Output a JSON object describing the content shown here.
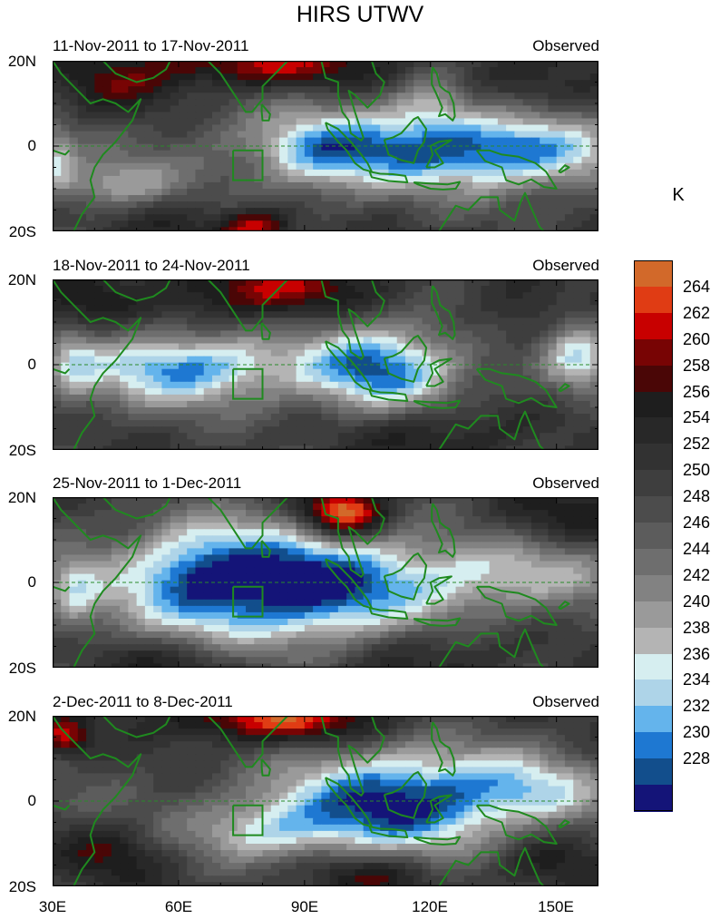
{
  "chart_data": {
    "type": "heatmap",
    "title": "HIRS UTWV",
    "unit": "K",
    "x_tick_labels": [
      "30E",
      "60E",
      "90E",
      "120E",
      "150E"
    ],
    "x_ticks_lon": [
      30,
      60,
      90,
      120,
      150
    ],
    "xlim": [
      30,
      160
    ],
    "y_tick_labels": [
      "20N",
      "0",
      "20S"
    ],
    "y_ticks_lat": [
      20,
      0,
      -20
    ],
    "ylim": [
      -20,
      20
    ],
    "colorbar": {
      "labels": [
        "264",
        "262",
        "260",
        "258",
        "256",
        "254",
        "252",
        "250",
        "248",
        "246",
        "244",
        "242",
        "240",
        "238",
        "236",
        "234",
        "232",
        "230",
        "228"
      ],
      "bin_colors": [
        "#d2692a",
        "#e03c14",
        "#c80000",
        "#780404",
        "#4a0606",
        "#1e1e1e",
        "#282828",
        "#323232",
        "#3e3e3e",
        "#4c4c4c",
        "#5c5c5c",
        "#6e6e6e",
        "#828282",
        "#9a9a9a",
        "#b4b4b4",
        "#d6eef0",
        "#aed4e8",
        "#64b4ec",
        "#1e78d2",
        "#124e8c",
        "#141478"
      ]
    },
    "panels": [
      {
        "period": "11-Nov-2011 to 17-Nov-2011",
        "label": "Observed"
      },
      {
        "period": "18-Nov-2011 to 24-Nov-2011",
        "label": "Observed"
      },
      {
        "period": "25-Nov-2011 to 1-Dec-2011",
        "label": "Observed"
      },
      {
        "period": "2-Dec-2011 to 8-Dec-2011",
        "label": "Observed"
      }
    ]
  }
}
